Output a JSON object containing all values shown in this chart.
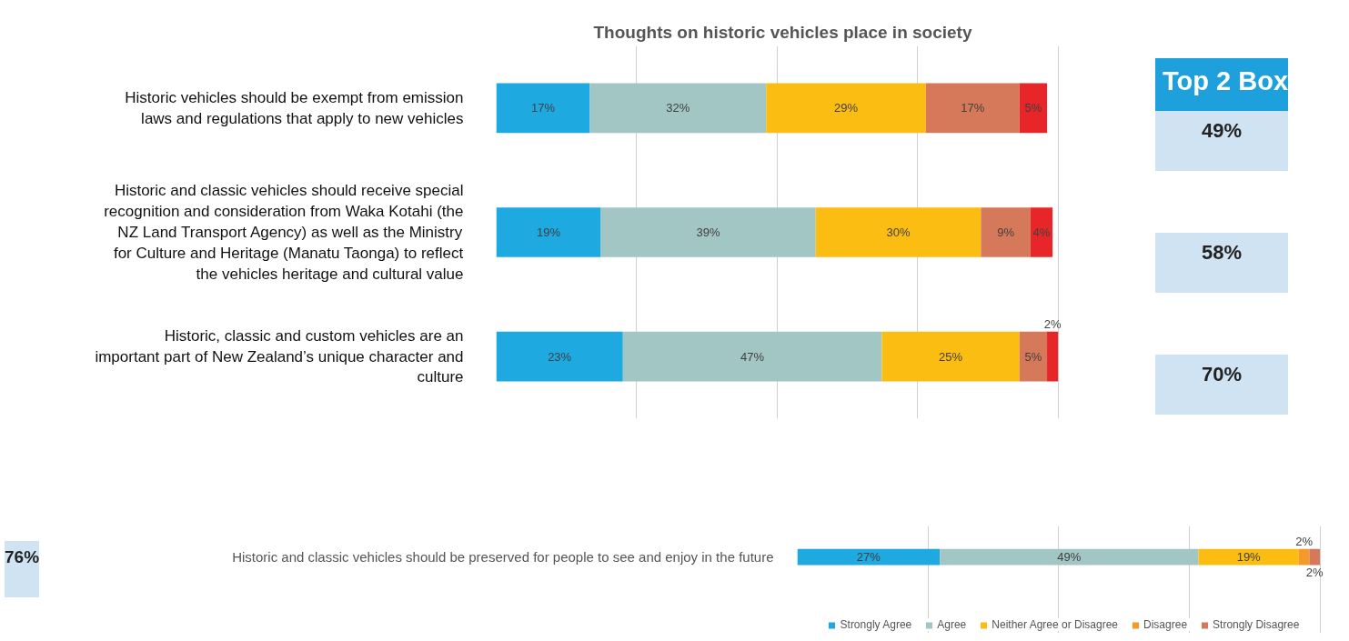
{
  "chart_data": [
    {
      "type": "bar",
      "orientation": "horizontal",
      "stacked": true,
      "title": "Thoughts on historic vehicles place in society",
      "categories": [
        "Historic vehicles should be exempt from emission laws and regulations that apply to new vehicles",
        "Historic and classic vehicles should receive special recognition and consideration from Waka Kotahi (the NZ Land Transport Agency) as well as the Ministry for Culture and Heritage (Manatu Taonga) to reflect the vehicles heritage and cultural value",
        "Historic, classic and custom vehicles are an important part of New Zealand’s unique character and culture"
      ],
      "series": [
        {
          "color": "#1ea9e1",
          "values": [
            17,
            19,
            23
          ],
          "value_labels": [
            "17%",
            "19%",
            "23%"
          ]
        },
        {
          "color": "#a2c6c4",
          "values": [
            32,
            39,
            47
          ],
          "value_labels": [
            "32%",
            "39%",
            "47%"
          ]
        },
        {
          "color": "#fbbd12",
          "values": [
            29,
            30,
            25
          ],
          "value_labels": [
            "29%",
            "30%",
            "25%"
          ]
        },
        {
          "color": "#d6795a",
          "values": [
            17,
            9,
            5
          ],
          "value_labels": [
            "17%",
            "9%",
            "5%"
          ]
        },
        {
          "color": "#e8262a",
          "values": [
            5,
            4,
            2
          ],
          "value_labels": [
            "5%",
            "4%",
            "2%"
          ]
        }
      ],
      "grid": "x",
      "tick_labels": "y",
      "annotations": [
        "Top 2 Box",
        "49%",
        "58%",
        "70%"
      ]
    },
    {
      "type": "bar",
      "orientation": "horizontal",
      "stacked": true,
      "categories": [
        "Historic and classic vehicles should be preserved for people to see and enjoy in the future"
      ],
      "series": [
        {
          "name": "Strongly Agree",
          "color": "#1ea9e1",
          "values": [
            27
          ],
          "value_labels": [
            "27%"
          ]
        },
        {
          "name": "Agree",
          "color": "#a2c6c4",
          "values": [
            49
          ],
          "value_labels": [
            "49%"
          ]
        },
        {
          "name": "Neither Agree or Disagree",
          "color": "#fbbd12",
          "values": [
            19
          ],
          "value_labels": [
            "19%"
          ]
        },
        {
          "name": "Disagree",
          "color": "#f39a2a",
          "values": [
            2
          ],
          "value_labels": [
            "2%"
          ]
        },
        {
          "name": "Strongly Disagree",
          "color": "#d6795a",
          "values": [
            2
          ],
          "value_labels": [
            "2%"
          ]
        }
      ],
      "grid": "x",
      "tick_labels": "y",
      "legend": "bottom",
      "annotations": [
        "76%"
      ]
    }
  ]
}
